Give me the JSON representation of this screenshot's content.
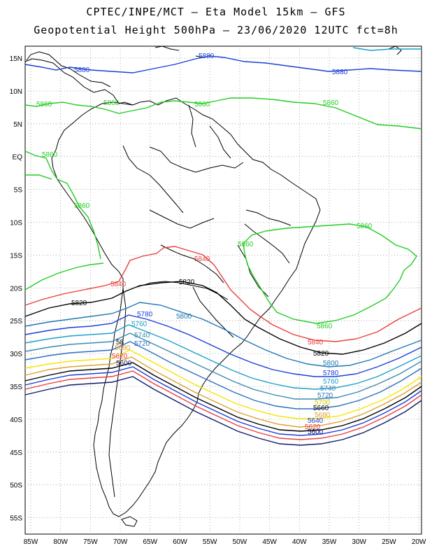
{
  "title_line1": "CPTEC/INPE/MCT —  Eta Model 15km — GFS",
  "title_line2": "Geopotential Height 500hPa — 23/06/2020 12UTC fct=8h",
  "lat_labels": [
    "15N",
    "10N",
    "5N",
    "EQ",
    "5S",
    "10S",
    "15S",
    "20S",
    "25S",
    "30S",
    "35S",
    "40S",
    "45S",
    "50S",
    "55S"
  ],
  "lon_labels": [
    "85W",
    "80W",
    "75W",
    "70W",
    "65W",
    "60W",
    "55W",
    "50W",
    "45W",
    "40W",
    "35W",
    "30W",
    "25W",
    "20W"
  ],
  "contours": [
    {
      "value": "5880",
      "color": "#1a3fd6"
    },
    {
      "value": "5860",
      "color": "#22cc22"
    },
    {
      "value": "5840",
      "color": "#e8403a"
    },
    {
      "value": "5820",
      "color": "#000000"
    },
    {
      "value": "5800",
      "color": "#1f78b4"
    },
    {
      "value": "5780",
      "color": "#1a3fd6"
    },
    {
      "value": "5760",
      "color": "#1aa0c8"
    },
    {
      "value": "5740",
      "color": "#3a8ab0"
    },
    {
      "value": "5720",
      "color": "#2a70c0"
    },
    {
      "value": "5700",
      "color": "#f5e600"
    },
    {
      "value": "5680",
      "color": "#e0a030"
    },
    {
      "value": "5660",
      "color": "#000000"
    },
    {
      "value": "5640",
      "color": "#1a3fd6"
    },
    {
      "value": "5620",
      "color": "#e8403a"
    },
    {
      "value": "5600",
      "color": "#0a1a70"
    }
  ],
  "labels": {
    "l5880a": "5880",
    "l5880b": "5880",
    "l5880c": "5880",
    "l5860a": "5860",
    "l5860b": "5860",
    "l5860c": "5860",
    "l5860d": "5860",
    "l5860e": "5860",
    "l5860f": "5860",
    "l5860g": "5860",
    "l5840a": "5840",
    "l5840b": "5840",
    "l5840c": "5840",
    "l5820a": "5820",
    "l5820b": "5820",
    "l5820c": "5820",
    "l5800a": "5800",
    "l5800b": "5800",
    "l5780a": "5780",
    "l5780b": "5780",
    "l5760a": "5760",
    "l5760b": "5760",
    "l5740a": "5740",
    "l5740b": "5740",
    "l5720a": "5720",
    "l5720b": "5720",
    "l5700a": "5700",
    "l5680a": "5680",
    "l5680b": "5680",
    "l5660a": "5660",
    "l5640a": "5640",
    "l5620a": "5620",
    "l5620b": "5620",
    "l5600a": "5600",
    "l5600b": "5600",
    "l58a": "58"
  }
}
